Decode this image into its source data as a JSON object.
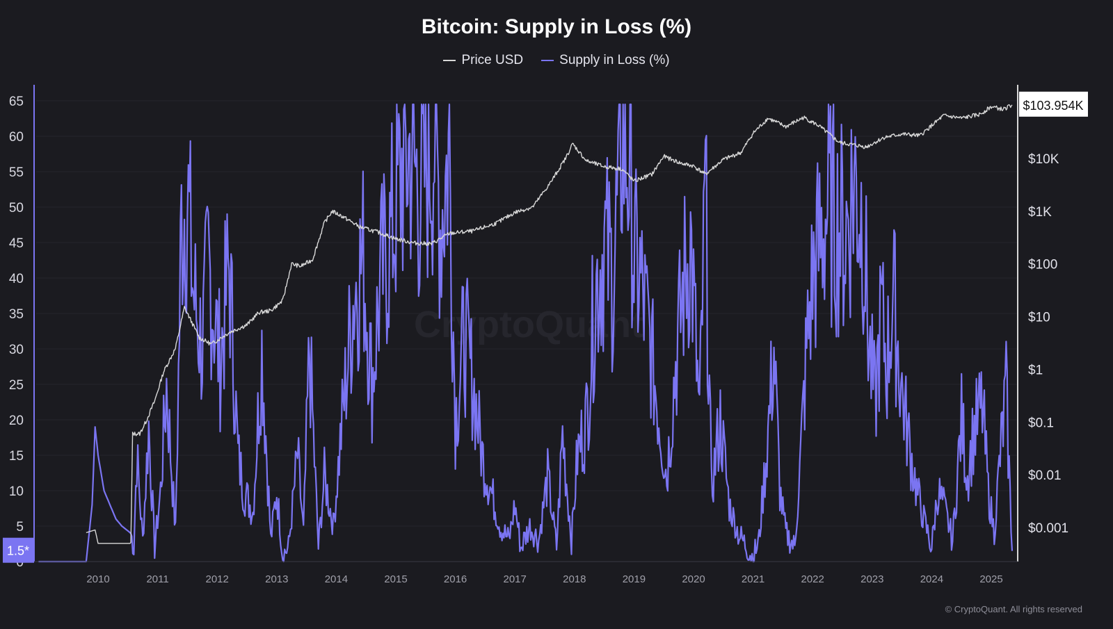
{
  "chart_data": {
    "type": "line",
    "title": "Bitcoin: Supply in Loss (%)",
    "legend_position": "top-center",
    "grid": true,
    "watermark": "CryptoQuant",
    "copyright": "© CryptoQuant. All rights reserved",
    "x_ticks": [
      "2010",
      "2011",
      "2012",
      "2013",
      "2014",
      "2015",
      "2016",
      "2017",
      "2018",
      "2019",
      "2020",
      "2021",
      "2022",
      "2023",
      "2024",
      "2025"
    ],
    "left_axis": {
      "ticks": [
        "0",
        "5",
        "10",
        "15",
        "20",
        "25",
        "30",
        "35",
        "40",
        "45",
        "50",
        "55",
        "60",
        "65"
      ],
      "ylim": [
        0,
        66
      ],
      "current_label": "1.5*",
      "current_value": 1.5
    },
    "right_axis": {
      "scale": "log",
      "ticks": [
        "$0.001",
        "$0.01",
        "$0.1",
        "$1",
        "$10",
        "$100",
        "$1K",
        "$10K"
      ],
      "current_label": "$103.954K",
      "current_value": 103954
    },
    "series": [
      {
        "name": "Price USD",
        "color": "#d8d8d8",
        "axis": "right",
        "x": [
          2009.8,
          2009.95,
          2010.0,
          2010.55,
          2010.58,
          2010.7,
          2010.8,
          2010.95,
          2011.1,
          2011.3,
          2011.45,
          2011.7,
          2011.9,
          2012.2,
          2012.5,
          2012.7,
          2012.9,
          2013.1,
          2013.25,
          2013.4,
          2013.6,
          2013.8,
          2013.93,
          2014.1,
          2014.4,
          2014.7,
          2015.0,
          2015.3,
          2015.6,
          2015.9,
          2016.3,
          2016.7,
          2017.0,
          2017.3,
          2017.6,
          2017.85,
          2017.97,
          2018.2,
          2018.5,
          2018.8,
          2019.0,
          2019.3,
          2019.5,
          2019.8,
          2020.0,
          2020.2,
          2020.5,
          2020.8,
          2021.0,
          2021.25,
          2021.55,
          2021.85,
          2022.1,
          2022.45,
          2022.9,
          2023.2,
          2023.5,
          2023.8,
          2024.0,
          2024.2,
          2024.5,
          2024.8,
          2025.0,
          2025.2,
          2025.35
        ],
        "values": [
          0.0008,
          0.0009,
          0.0005,
          0.0005,
          0.06,
          0.06,
          0.1,
          0.25,
          0.9,
          2.5,
          15,
          4,
          3,
          5,
          7,
          12,
          13,
          20,
          100,
          90,
          120,
          600,
          1000,
          800,
          500,
          400,
          300,
          250,
          240,
          380,
          420,
          600,
          950,
          1200,
          3500,
          10000,
          19000,
          9000,
          7000,
          6300,
          3700,
          5000,
          11000,
          8000,
          7200,
          5000,
          9500,
          13000,
          30000,
          58000,
          40000,
          60000,
          42000,
          20000,
          16500,
          25000,
          29000,
          27000,
          42000,
          65000,
          58000,
          68000,
          96000,
          85000,
          103954
        ]
      },
      {
        "name": "Supply in Loss (%)",
        "color": "#7b75f2",
        "axis": "left",
        "x": [
          2009.0,
          2009.8,
          2009.9,
          2009.95,
          2010.0,
          2010.1,
          2010.2,
          2010.3,
          2010.4,
          2010.55,
          2010.6,
          2010.65,
          2010.75,
          2010.85,
          2010.95,
          2011.05,
          2011.15,
          2011.3,
          2011.4,
          2011.5,
          2011.6,
          2011.75,
          2011.85,
          2011.95,
          2012.05,
          2012.2,
          2012.35,
          2012.45,
          2012.6,
          2012.75,
          2012.9,
          2013.0,
          2013.1,
          2013.2,
          2013.35,
          2013.45,
          2013.55,
          2013.7,
          2013.8,
          2013.95,
          2014.1,
          2014.3,
          2014.45,
          2014.6,
          2014.75,
          2014.9,
          2015.0,
          2015.1,
          2015.25,
          2015.4,
          2015.55,
          2015.65,
          2015.75,
          2015.9,
          2016.0,
          2016.15,
          2016.3,
          2016.45,
          2016.6,
          2016.75,
          2016.9,
          2017.0,
          2017.1,
          2017.25,
          2017.4,
          2017.55,
          2017.7,
          2017.8,
          2017.95,
          2018.05,
          2018.2,
          2018.35,
          2018.5,
          2018.65,
          2018.8,
          2018.95,
          2019.0,
          2019.1,
          2019.25,
          2019.4,
          2019.55,
          2019.7,
          2019.85,
          2019.95,
          2020.1,
          2020.2,
          2020.3,
          2020.45,
          2020.6,
          2020.75,
          2020.9,
          2021.0,
          2021.1,
          2021.25,
          2021.35,
          2021.45,
          2021.55,
          2021.7,
          2021.8,
          2021.9,
          2022.0,
          2022.1,
          2022.25,
          2022.4,
          2022.55,
          2022.7,
          2022.85,
          2022.95,
          2023.05,
          2023.15,
          2023.25,
          2023.35,
          2023.5,
          2023.65,
          2023.75,
          2023.9,
          2024.0,
          2024.1,
          2024.2,
          2024.35,
          2024.5,
          2024.6,
          2024.7,
          2024.85,
          2024.95,
          2025.05,
          2025.15,
          2025.25,
          2025.35
        ],
        "values": [
          0,
          0,
          8,
          19,
          15,
          10,
          8,
          6,
          5,
          4,
          2,
          15,
          3,
          19,
          2,
          10,
          25,
          4,
          48,
          52,
          38,
          30,
          42,
          35,
          28,
          42,
          15,
          10,
          7,
          30,
          3,
          10,
          1,
          2,
          15,
          4,
          30,
          2,
          12,
          5,
          20,
          38,
          43,
          25,
          40,
          45,
          50,
          55,
          58,
          52,
          57,
          60,
          48,
          58,
          20,
          32,
          25,
          15,
          10,
          5,
          3,
          8,
          2,
          5,
          3,
          12,
          2,
          18,
          3,
          15,
          20,
          38,
          45,
          40,
          60,
          55,
          42,
          40,
          32,
          22,
          12,
          28,
          40,
          45,
          20,
          52,
          10,
          20,
          8,
          4,
          2,
          0.5,
          3,
          18,
          30,
          10,
          4,
          2,
          15,
          30,
          40,
          44,
          50,
          48,
          46,
          54,
          48,
          30,
          22,
          35,
          28,
          38,
          24,
          15,
          10,
          5,
          2,
          10,
          8,
          3,
          20,
          12,
          18,
          22,
          10,
          4,
          15,
          24,
          1.5
        ]
      }
    ]
  }
}
